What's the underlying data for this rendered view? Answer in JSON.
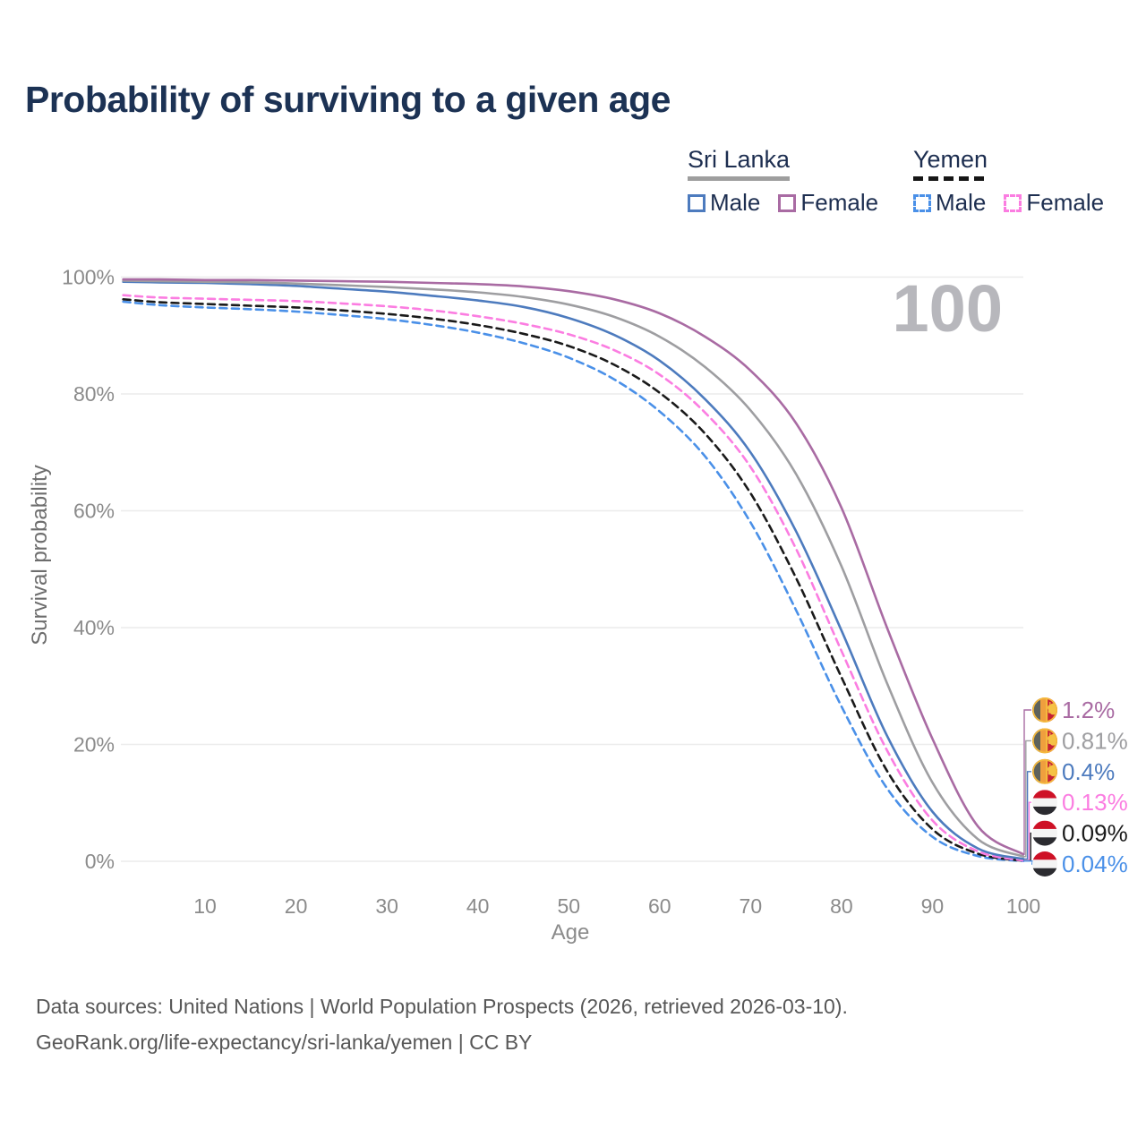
{
  "title": "Probability of surviving to a given age",
  "watermark": "100",
  "legend": {
    "groups": [
      {
        "name": "Sri Lanka",
        "underline_color": "#9e9e9e",
        "underline_style": "solid",
        "items": [
          {
            "label": "Male",
            "color": "#4d7bbe",
            "style": "solid"
          },
          {
            "label": "Female",
            "color": "#a96ba3",
            "style": "solid"
          }
        ]
      },
      {
        "name": "Yemen",
        "underline_color": "#161616",
        "underline_style": "dashed",
        "items": [
          {
            "label": "Male",
            "color": "#4a90e8",
            "style": "dashed"
          },
          {
            "label": "Female",
            "color": "#fb7de1",
            "style": "dashed"
          }
        ]
      }
    ]
  },
  "chart_data": {
    "type": "line",
    "title": "Probability of surviving to a given age",
    "xlabel": "Age",
    "ylabel": "Survival probability",
    "xlim": [
      0,
      100
    ],
    "ylim": [
      0,
      100
    ],
    "grid": "horizontal",
    "x_ticks": [
      10,
      20,
      30,
      40,
      50,
      60,
      70,
      80,
      90,
      100
    ],
    "y_ticks": [
      0,
      20,
      40,
      60,
      80,
      100
    ],
    "y_tick_labels": [
      "0%",
      "20%",
      "40%",
      "60%",
      "80%",
      "100%"
    ],
    "highlight_age": "100",
    "x": [
      1,
      5,
      10,
      15,
      20,
      25,
      30,
      35,
      40,
      45,
      50,
      55,
      60,
      65,
      70,
      75,
      80,
      85,
      90,
      95,
      100
    ],
    "series": [
      {
        "name": "Sri Lanka – Female",
        "country": "Sri Lanka",
        "sex": "Female",
        "color": "#a96ba3",
        "dash": false,
        "flag": "sri-lanka",
        "end_label": "1.2%",
        "values": [
          99.6,
          99.6,
          99.5,
          99.5,
          99.4,
          99.3,
          99.2,
          99.0,
          98.8,
          98.4,
          97.6,
          96.2,
          93.8,
          89.8,
          84.0,
          75.0,
          60.5,
          40.0,
          21.0,
          6.0,
          1.2
        ]
      },
      {
        "name": "Sri Lanka – Both sexes",
        "country": "Sri Lanka",
        "sex": "Both",
        "color": "#9e9ea1",
        "dash": false,
        "flag": "sri-lanka",
        "end_label": "0.81%",
        "values": [
          99.4,
          99.3,
          99.2,
          99.1,
          98.9,
          98.6,
          98.3,
          97.9,
          97.4,
          96.6,
          95.3,
          93.2,
          89.8,
          84.6,
          77.2,
          66.3,
          50.5,
          30.5,
          13.5,
          3.8,
          0.81
        ]
      },
      {
        "name": "Sri Lanka – Male",
        "country": "Sri Lanka",
        "sex": "Male",
        "color": "#4d7bbe",
        "dash": false,
        "flag": "sri-lanka",
        "end_label": "0.4%",
        "values": [
          99.2,
          99.1,
          99.0,
          98.8,
          98.5,
          98.0,
          97.5,
          96.8,
          96.0,
          94.9,
          93.0,
          90.1,
          85.7,
          79.1,
          70.0,
          56.5,
          39.5,
          21.5,
          8.5,
          2.2,
          0.4
        ]
      },
      {
        "name": "Yemen – Female",
        "country": "Yemen",
        "sex": "Female",
        "color": "#fb7de1",
        "dash": true,
        "flag": "yemen",
        "end_label": "0.13%",
        "values": [
          96.9,
          96.5,
          96.3,
          96.1,
          95.9,
          95.5,
          95.0,
          94.3,
          93.3,
          92.0,
          90.2,
          87.5,
          83.3,
          76.8,
          67.5,
          53.5,
          36.0,
          19.0,
          7.0,
          1.7,
          0.13
        ]
      },
      {
        "name": "Yemen – Both sexes",
        "country": "Yemen",
        "sex": "Both",
        "color": "#1a1a1a",
        "dash": true,
        "flag": "yemen",
        "end_label": "0.09%",
        "values": [
          96.2,
          95.7,
          95.4,
          95.1,
          94.8,
          94.3,
          93.7,
          92.9,
          91.8,
          90.3,
          88.2,
          85.0,
          80.2,
          73.2,
          63.0,
          48.5,
          31.5,
          15.5,
          5.5,
          1.3,
          0.09
        ]
      },
      {
        "name": "Yemen – Male",
        "country": "Yemen",
        "sex": "Male",
        "color": "#4a90e8",
        "dash": true,
        "flag": "yemen",
        "end_label": "0.04%",
        "values": [
          95.8,
          95.2,
          94.8,
          94.5,
          94.1,
          93.5,
          92.8,
          91.8,
          90.5,
          88.7,
          86.2,
          82.5,
          77.0,
          69.3,
          58.0,
          43.0,
          26.5,
          12.5,
          4.2,
          0.9,
          0.04
        ]
      }
    ]
  },
  "footer": {
    "line1": "Data sources: United Nations | World Population Prospects (2026, retrieved 2026-03-10).",
    "line2": "GeoRank.org/life-expectancy/sri-lanka/yemen | CC BY"
  }
}
